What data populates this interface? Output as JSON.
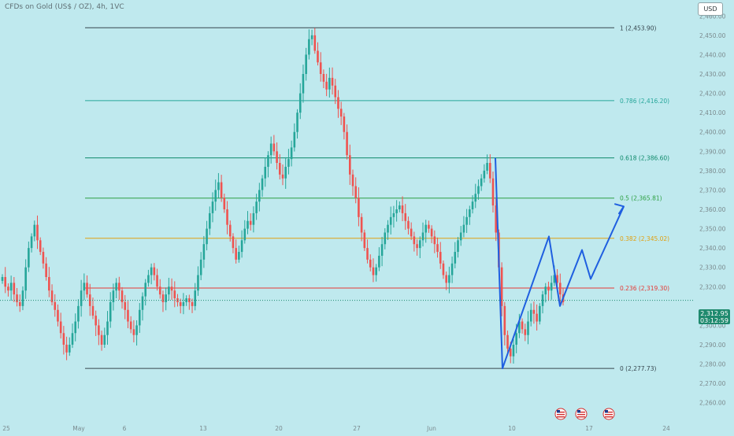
{
  "header": {
    "symbol_title": "CFDs on Gold (US$ / OZ), 4h, 1VC",
    "currency": "USD"
  },
  "current_price": {
    "value": "2,312.95",
    "countdown": "03:12:59"
  },
  "chart_data": {
    "type": "candlestick",
    "y_axis": {
      "ticks": [
        2460,
        2450,
        2440,
        2430,
        2420,
        2410,
        2400,
        2390,
        2380,
        2370,
        2360,
        2350,
        2340,
        2330,
        2320,
        2300,
        2290,
        2280,
        2270,
        2260
      ],
      "tick_labels": [
        "2,460.00",
        "2,450.00",
        "2,440.00",
        "2,430.00",
        "2,420.00",
        "2,410.00",
        "2,400.00",
        "2,390.00",
        "2,380.00",
        "2,370.00",
        "2,360.00",
        "2,350.00",
        "2,340.00",
        "2,330.00",
        "2,320.00",
        "2,300.00",
        "2,290.00",
        "2,280.00",
        "2,270.00",
        "2,260.00"
      ],
      "range": [
        2255,
        2465
      ]
    },
    "x_axis": {
      "tick_labels": [
        "25",
        "May",
        "6",
        "13",
        "20",
        "27",
        "Jun",
        "10",
        "17",
        "24"
      ]
    },
    "fibonacci_levels": [
      {
        "ratio": "1",
        "price": 2453.9,
        "label": "1 (2,453.90)",
        "color": "#37474f"
      },
      {
        "ratio": "0.786",
        "price": 2416.2,
        "label": "0.786 (2,416.20)",
        "color": "#26a69a"
      },
      {
        "ratio": "0.618",
        "price": 2386.6,
        "label": "0.618 (2,386.60)",
        "color": "#0f8a6b"
      },
      {
        "ratio": "0.5",
        "price": 2365.81,
        "label": "0.5 (2,365.81)",
        "color": "#2ea043"
      },
      {
        "ratio": "0.382",
        "price": 2345.02,
        "label": "0.382 (2,345.02)",
        "color": "#e0a010"
      },
      {
        "ratio": "0.236",
        "price": 2319.3,
        "label": "0.236 (2,319.30)",
        "color": "#e53935"
      },
      {
        "ratio": "0",
        "price": 2277.73,
        "label": "0 (2,277.73)",
        "color": "#37474f"
      }
    ],
    "current_price_value": 2312.95,
    "candle_closes": [
      2325,
      2320,
      2318,
      2322,
      2316,
      2312,
      2310,
      2318,
      2330,
      2340,
      2346,
      2352,
      2344,
      2338,
      2332,
      2325,
      2318,
      2312,
      2308,
      2302,
      2296,
      2290,
      2286,
      2290,
      2296,
      2302,
      2310,
      2318,
      2322,
      2316,
      2310,
      2305,
      2300,
      2295,
      2290,
      2295,
      2302,
      2312,
      2318,
      2322,
      2318,
      2312,
      2308,
      2302,
      2298,
      2295,
      2300,
      2308,
      2315,
      2322,
      2326,
      2330,
      2326,
      2320,
      2316,
      2312,
      2316,
      2320,
      2318,
      2314,
      2312,
      2310,
      2312,
      2314,
      2312,
      2310,
      2318,
      2326,
      2334,
      2342,
      2350,
      2358,
      2364,
      2370,
      2374,
      2366,
      2360,
      2352,
      2346,
      2340,
      2334,
      2338,
      2344,
      2350,
      2354,
      2352,
      2358,
      2364,
      2370,
      2376,
      2382,
      2388,
      2394,
      2390,
      2384,
      2378,
      2376,
      2382,
      2386,
      2392,
      2400,
      2410,
      2420,
      2430,
      2440,
      2448,
      2450,
      2442,
      2436,
      2430,
      2426,
      2422,
      2428,
      2424,
      2418,
      2412,
      2408,
      2400,
      2388,
      2378,
      2372,
      2366,
      2356,
      2348,
      2340,
      2334,
      2330,
      2326,
      2330,
      2336,
      2342,
      2348,
      2352,
      2356,
      2358,
      2360,
      2362,
      2358,
      2354,
      2350,
      2346,
      2342,
      2340,
      2344,
      2348,
      2352,
      2350,
      2346,
      2342,
      2338,
      2332,
      2326,
      2322,
      2326,
      2332,
      2338,
      2344,
      2348,
      2352,
      2356,
      2360,
      2364,
      2368,
      2372,
      2376,
      2380,
      2384,
      2376,
      2362,
      2348,
      2330,
      2310,
      2295,
      2288,
      2284,
      2290,
      2296,
      2302,
      2298,
      2295,
      2302,
      2308,
      2306,
      2302,
      2310,
      2316,
      2320,
      2318,
      2322,
      2326,
      2322,
      2316,
      2312
    ],
    "projected_path": [
      {
        "date_index": 0,
        "price": 2386.6
      },
      {
        "date_index": 1,
        "price": 2277.73
      },
      {
        "date_index": 2,
        "price": 2346.0
      },
      {
        "date_index": 3,
        "price": 2310.0
      },
      {
        "date_index": 4,
        "price": 2339.0
      },
      {
        "date_index": 5,
        "price": 2324.0
      },
      {
        "date_index": 6,
        "price": 2361.5
      }
    ],
    "event_markers": [
      {
        "icon": "us-flag-icon",
        "count": 3
      }
    ],
    "colors": {
      "up": "#26a69a",
      "down": "#ef5350",
      "projection": "#1f5fe0",
      "background": "#bfe9ee"
    }
  }
}
